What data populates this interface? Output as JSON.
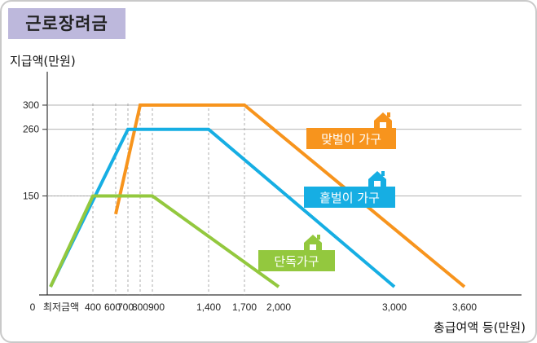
{
  "title": "근로장려금",
  "chart_data": {
    "type": "line",
    "xlabel": "총급여액 등(만원)",
    "ylabel": "지급액(만원)",
    "xlim": [
      0,
      3800
    ],
    "ylim": [
      0,
      350
    ],
    "x_ticks": [
      {
        "value": 0,
        "label": "0"
      },
      {
        "value": 100,
        "label": "최저금액"
      },
      {
        "value": 400,
        "label": "400"
      },
      {
        "value": 600,
        "label": "600"
      },
      {
        "value": 700,
        "label": "700"
      },
      {
        "value": 800,
        "label": "800"
      },
      {
        "value": 900,
        "label": "900"
      },
      {
        "value": 1400,
        "label": "1,400"
      },
      {
        "value": 1700,
        "label": "1,700"
      },
      {
        "value": 2000,
        "label": "2,000"
      },
      {
        "value": 3000,
        "label": "3,000"
      },
      {
        "value": 3600,
        "label": "3,600"
      }
    ],
    "y_ticks": [
      {
        "value": 150,
        "label": "150"
      },
      {
        "value": 260,
        "label": "260"
      },
      {
        "value": 300,
        "label": "300"
      }
    ],
    "series": [
      {
        "name": "맞벌이 가구",
        "color": "#f7941d",
        "points": [
          [
            550,
            120
          ],
          [
            800,
            300
          ],
          [
            1700,
            300
          ],
          [
            3600,
            0
          ]
        ]
      },
      {
        "name": "홑벌이 가구",
        "color": "#16aee3",
        "points": [
          [
            100,
            0
          ],
          [
            700,
            260
          ],
          [
            1400,
            260
          ],
          [
            3000,
            0
          ]
        ]
      },
      {
        "name": "단독가구",
        "color": "#93c83e",
        "points": [
          [
            100,
            0
          ],
          [
            400,
            150
          ],
          [
            900,
            150
          ],
          [
            2000,
            0
          ]
        ]
      }
    ]
  }
}
